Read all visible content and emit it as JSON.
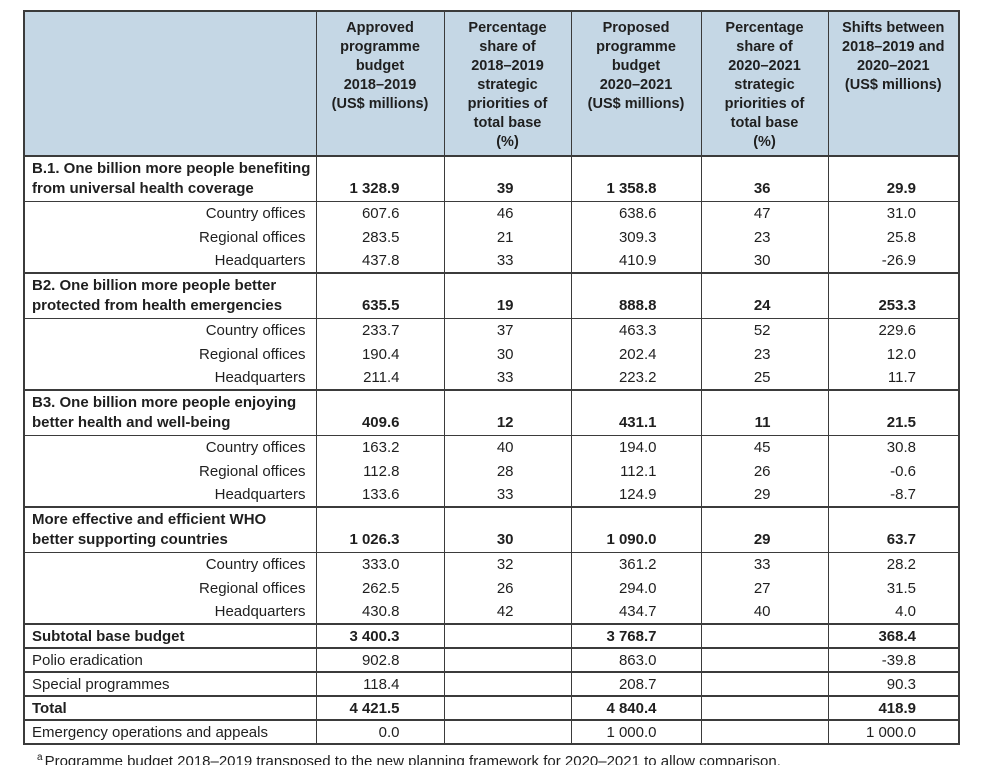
{
  "table": {
    "header": {
      "corner": "",
      "columns": [
        "Approved\nprogramme\nbudget\n2018–2019\n(US$ millions)",
        "Percentage\nshare of\n2018–2019\nstrategic\npriorities of\ntotal base\n(%)",
        "Proposed\nprogramme\nbudget\n2020–2021\n(US$ millions)",
        "Percentage\nshare of\n2020–2021\nstrategic\npriorities of\ntotal base\n(%)",
        "Shifts between\n2018–2019 and\n2020–2021\n(US$ millions)"
      ]
    },
    "sections": [
      {
        "label": "B.1. One billion more people benefiting\nfrom universal health coverage",
        "values": [
          "1 328.9",
          "39",
          "1 358.8",
          "36",
          "29.9"
        ],
        "rows": [
          {
            "label": "Country offices",
            "values": [
              "607.6",
              "46",
              "638.6",
              "47",
              "31.0"
            ]
          },
          {
            "label": "Regional offices",
            "values": [
              "283.5",
              "21",
              "309.3",
              "23",
              "25.8"
            ]
          },
          {
            "label": "Headquarters",
            "values": [
              "437.8",
              "33",
              "410.9",
              "30",
              "-26.9"
            ]
          }
        ]
      },
      {
        "label": "B2. One billion more people better\nprotected from health emergencies",
        "values": [
          "635.5",
          "19",
          "888.8",
          "24",
          "253.3"
        ],
        "rows": [
          {
            "label": "Country offices",
            "values": [
              "233.7",
              "37",
              "463.3",
              "52",
              "229.6"
            ]
          },
          {
            "label": "Regional offices",
            "values": [
              "190.4",
              "30",
              "202.4",
              "23",
              "12.0"
            ]
          },
          {
            "label": "Headquarters",
            "values": [
              "211.4",
              "33",
              "223.2",
              "25",
              "11.7"
            ]
          }
        ]
      },
      {
        "label": "B3. One billion more people enjoying\nbetter health and well-being",
        "values": [
          "409.6",
          "12",
          "431.1",
          "11",
          "21.5"
        ],
        "rows": [
          {
            "label": "Country offices",
            "values": [
              "163.2",
              "40",
              "194.0",
              "45",
              "30.8"
            ]
          },
          {
            "label": "Regional offices",
            "values": [
              "112.8",
              "28",
              "112.1",
              "26",
              "-0.6"
            ]
          },
          {
            "label": "Headquarters",
            "values": [
              "133.6",
              "33",
              "124.9",
              "29",
              "-8.7"
            ]
          }
        ]
      },
      {
        "label": "More effective and efficient WHO\nbetter supporting countries",
        "values": [
          "1 026.3",
          "30",
          "1 090.0",
          "29",
          "63.7"
        ],
        "rows": [
          {
            "label": "Country offices",
            "values": [
              "333.0",
              "32",
              "361.2",
              "33",
              "28.2"
            ]
          },
          {
            "label": "Regional offices",
            "values": [
              "262.5",
              "26",
              "294.0",
              "27",
              "31.5"
            ]
          },
          {
            "label": "Headquarters",
            "values": [
              "430.8",
              "42",
              "434.7",
              "40",
              "4.0"
            ]
          }
        ]
      }
    ],
    "summary_rows": [
      {
        "label": "Subtotal base budget",
        "bold": true,
        "values": [
          "3 400.3",
          "",
          "3 768.7",
          "",
          "368.4"
        ]
      },
      {
        "label": "Polio eradication",
        "bold": false,
        "values": [
          "902.8",
          "",
          "863.0",
          "",
          "-39.8"
        ]
      },
      {
        "label": "Special programmes",
        "bold": false,
        "values": [
          "118.4",
          "",
          "208.7",
          "",
          "90.3"
        ]
      },
      {
        "label": "Total",
        "bold": true,
        "values": [
          "4 421.5",
          "",
          "4 840.4",
          "",
          "418.9"
        ]
      },
      {
        "label": "Emergency operations and appeals",
        "bold": false,
        "values": [
          "0.0",
          "",
          "1 000.0",
          "",
          "1 000.0"
        ]
      }
    ]
  },
  "footnote": {
    "marker": "a",
    "text": "Programme budget 2018–2019 transposed to the new planning framework for 2020–2021 to allow comparison."
  },
  "colors": {
    "header_bg": "#c5d7e5",
    "border": "#3b3b3b",
    "text": "#1f1f1f"
  }
}
